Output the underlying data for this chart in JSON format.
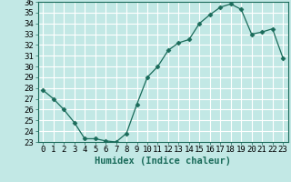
{
  "x": [
    0,
    1,
    2,
    3,
    4,
    5,
    6,
    7,
    8,
    9,
    10,
    11,
    12,
    13,
    14,
    15,
    16,
    17,
    18,
    19,
    20,
    21,
    22,
    23
  ],
  "y": [
    27.8,
    27.0,
    26.0,
    24.8,
    23.3,
    23.3,
    23.1,
    23.0,
    23.8,
    26.5,
    29.0,
    30.0,
    31.5,
    32.2,
    32.5,
    34.0,
    34.8,
    35.5,
    35.8,
    35.3,
    33.0,
    33.2,
    33.5,
    30.8
  ],
  "line_color": "#1a6b5a",
  "marker": "D",
  "marker_size": 2.5,
  "bg_color": "#c2e8e5",
  "grid_color": "#ffffff",
  "xlabel": "Humidex (Indice chaleur)",
  "ylim": [
    23,
    36
  ],
  "xlim": [
    -0.5,
    23.5
  ],
  "yticks": [
    23,
    24,
    25,
    26,
    27,
    28,
    29,
    30,
    31,
    32,
    33,
    34,
    35,
    36
  ],
  "xticks": [
    0,
    1,
    2,
    3,
    4,
    5,
    6,
    7,
    8,
    9,
    10,
    11,
    12,
    13,
    14,
    15,
    16,
    17,
    18,
    19,
    20,
    21,
    22,
    23
  ],
  "tick_fontsize": 6.5,
  "xlabel_fontsize": 7.5
}
